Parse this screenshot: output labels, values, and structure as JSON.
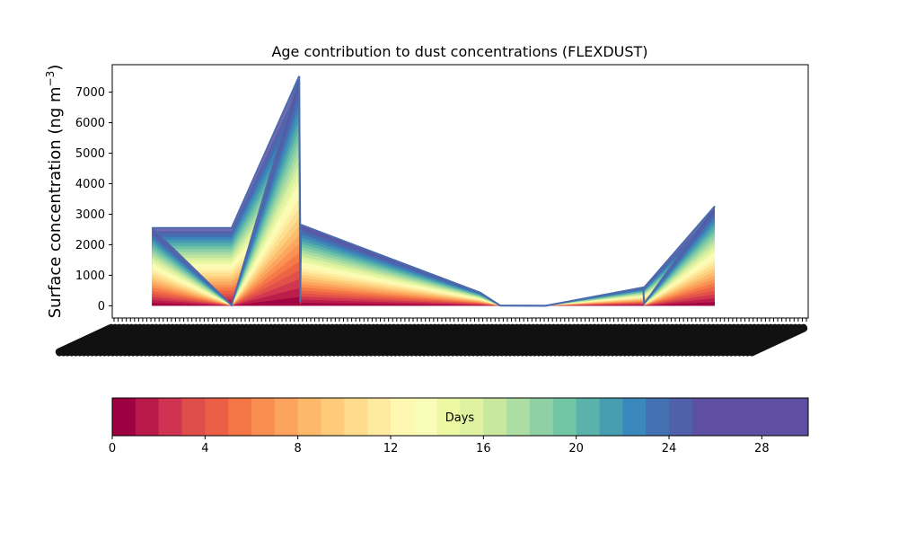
{
  "chart_data": {
    "type": "area",
    "title": "Age contribution to dust concentrations (FLEXDUST)",
    "ylabel": "Surface concentration (ng m",
    "ylabel_sup": "−3",
    "ylabel_close": ")",
    "xlabel": "",
    "ylim": [
      -400,
      7900
    ],
    "yticks": [
      0,
      1000,
      2000,
      3000,
      4000,
      5000,
      6000,
      7000
    ],
    "grid": false,
    "x_tick_labels_note": "dense overlapping date labels (unreadable)",
    "total_series": {
      "x": [
        1,
        5,
        8.4,
        8.45,
        8.5,
        17.5,
        18.5,
        20.8,
        25.7,
        25.75,
        29.3
      ],
      "y": [
        2550,
        20,
        7520,
        120,
        2650,
        430,
        10,
        0,
        600,
        70,
        3260
      ]
    },
    "reversed_series": {
      "x": [
        1,
        5,
        8.4,
        8.45,
        8.5,
        17.5,
        18.5,
        20.8,
        25.7,
        25.75,
        29.3
      ],
      "y": [
        2550,
        2550,
        7520,
        2650,
        2650,
        430,
        10,
        0,
        600,
        600,
        3260
      ]
    },
    "xlim": [
      -1,
      34
    ],
    "colorbar": {
      "label": "Days",
      "min": 0,
      "max": 30,
      "ticks": [
        0,
        4,
        8,
        12,
        16,
        20,
        24,
        28
      ],
      "colors": [
        "#9e0142",
        "#b91a4a",
        "#cf3351",
        "#df4d4b",
        "#ea5f46",
        "#f47646",
        "#f98e52",
        "#fca35e",
        "#fdb869",
        "#fdcb7a",
        "#fedc8c",
        "#feeb9f",
        "#fff8b1",
        "#fafdb8",
        "#ecf7a2",
        "#def2a1",
        "#c7e89e",
        "#acdda2",
        "#8fd1a4",
        "#72c6a5",
        "#5ab2aa",
        "#469eb0",
        "#3b88bc",
        "#4371b2",
        "#5061aa",
        "#5e4fa2",
        "#5e4fa2",
        "#5e4fa2",
        "#5e4fa2",
        "#5e4fa2"
      ]
    }
  }
}
